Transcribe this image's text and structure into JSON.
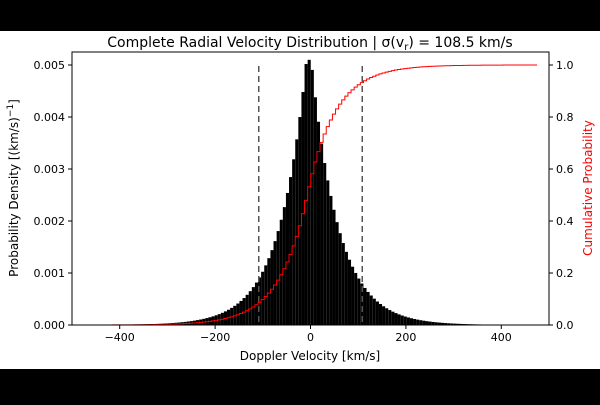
{
  "chart_data": {
    "type": "bar",
    "title": "Complete Radial Velocity Distribution | σ(v",
    "title_sub": "r",
    "title_tail": ") = 108.5 km/s",
    "xlabel": "Doppler Velocity [km/s]",
    "ylabel": "Probability Density [(km/s)",
    "ylabel_sup": "−1",
    "ylabel_tail": "]",
    "y2label": "Cumulative Probability",
    "xlim": [
      -500,
      500
    ],
    "ylim": [
      0,
      0.00525
    ],
    "y2lim": [
      0,
      1.05
    ],
    "x_ticks": [
      -400,
      -200,
      0,
      200,
      400
    ],
    "x_tick_labels": [
      "−400",
      "−200",
      "0",
      "200",
      "400"
    ],
    "y_ticks": [
      0,
      0.001,
      0.002,
      0.003,
      0.004,
      0.005
    ],
    "y_tick_labels": [
      "0.000",
      "0.001",
      "0.002",
      "0.003",
      "0.004",
      "0.005"
    ],
    "y2_ticks": [
      0,
      0.2,
      0.4,
      0.6,
      0.8,
      1.0
    ],
    "y2_tick_labels": [
      "0.0",
      "0.2",
      "0.4",
      "0.6",
      "0.8",
      "1.0"
    ],
    "bin_width": 6.5,
    "sigma": 108.5,
    "reference_lines": [
      -108.5,
      108.5
    ],
    "histogram": {
      "x": [
        -477.25,
        -470.75,
        -464.25,
        -457.75,
        -451.25,
        -444.75,
        -438.25,
        -431.75,
        -425.25,
        -418.75,
        -412.25,
        -405.75,
        -399.25,
        -392.75,
        -386.25,
        -379.75,
        -373.25,
        -366.75,
        -360.25,
        -353.75,
        -347.25,
        -340.75,
        -334.25,
        -327.75,
        -321.25,
        -314.75,
        -308.25,
        -301.75,
        -295.25,
        -288.75,
        -282.25,
        -275.75,
        -269.25,
        -262.75,
        -256.25,
        -249.75,
        -243.25,
        -236.75,
        -230.25,
        -223.75,
        -217.25,
        -210.75,
        -204.25,
        -197.75,
        -191.25,
        -184.75,
        -178.25,
        -171.75,
        -165.25,
        -158.75,
        -152.25,
        -145.75,
        -139.25,
        -132.75,
        -126.25,
        -119.75,
        -113.25,
        -106.75,
        -100.25,
        -93.75,
        -87.25,
        -80.75,
        -74.25,
        -67.75,
        -61.25,
        -54.75,
        -48.25,
        -41.75,
        -35.25,
        -28.75,
        -22.25,
        -15.75,
        -9.25,
        -2.75,
        3.75,
        10.25,
        16.75,
        23.25,
        29.75,
        36.25,
        42.75,
        49.25,
        55.75,
        62.25,
        68.75,
        75.25,
        81.75,
        88.25,
        94.75,
        101.25,
        107.75,
        114.25,
        120.75,
        127.25,
        133.75,
        140.25,
        146.75,
        153.25,
        159.75,
        166.25,
        172.75,
        179.25,
        185.75,
        192.25,
        198.75,
        205.25,
        211.75,
        218.25,
        224.75,
        231.25,
        237.75,
        244.25,
        250.75,
        257.25,
        263.75,
        270.25,
        276.75,
        283.25,
        289.75,
        296.25,
        302.75,
        309.25,
        315.75,
        322.25,
        328.75,
        335.25,
        341.75,
        348.25,
        354.75,
        361.25,
        367.75,
        374.25,
        380.75,
        387.25,
        393.75,
        400.25,
        406.75,
        413.25,
        419.75,
        426.25,
        432.75,
        439.25,
        445.75,
        452.25,
        458.75,
        465.25,
        471.75,
        478.25
      ],
      "density": [
        1.4e-06,
        1.5e-06,
        1.7e-06,
        1.9e-06,
        2.2e-06,
        2.4e-06,
        2.7e-06,
        3.1e-06,
        3.4e-06,
        3.9e-06,
        4.3e-06,
        4.8e-06,
        5.4e-06,
        6.1e-06,
        6.8e-06,
        7.7e-06,
        8.6e-06,
        9.7e-06,
        1.08e-05,
        1.22e-05,
        1.36e-05,
        1.53e-05,
        1.71e-05,
        1.92e-05,
        2.15e-05,
        2.41e-05,
        2.7e-05,
        3.02e-05,
        3.39e-05,
        3.8e-05,
        4.26e-05,
        4.77e-05,
        5.35e-05,
        5.99e-05,
        6.71e-05,
        7.52e-05,
        8.42e-05,
        9.43e-05,
        0.0001057,
        0.0001184,
        0.0001326,
        0.0001486,
        0.0001664,
        0.0001865,
        0.0002089,
        0.000234,
        0.0002622,
        0.0002937,
        0.000329,
        0.0003686,
        0.0004129,
        0.0004625,
        0.0005181,
        0.0005804,
        0.0006502,
        0.0007284,
        0.000816,
        0.0009141,
        0.001024,
        0.0011471,
        0.001285,
        0.0014395,
        0.0016126,
        0.0018064,
        0.0020236,
        0.0022669,
        0.0025395,
        0.0028448,
        0.0031869,
        0.0035701,
        0.0039993,
        0.0044801,
        0.0050188,
        0.0051,
        0.0049054,
        0.0043789,
        0.0039089,
        0.0034894,
        0.0031148,
        0.0027805,
        0.0024821,
        0.0022157,
        0.0019779,
        0.0017656,
        0.0015761,
        0.0014069,
        0.0012559,
        0.0011211,
        0.0010008,
        0.0008934,
        0.0007975,
        0.0007119,
        0.0006355,
        0.0005673,
        0.0005064,
        0.000452,
        0.0004035,
        0.0003602,
        0.0003215,
        0.000287,
        0.0002562,
        0.0002287,
        0.0002042,
        0.0001822,
        0.0001627,
        0.0001452,
        0.0001296,
        0.0001157,
        0.0001033,
        9.22e-05,
        8.23e-05,
        7.35e-05,
        6.56e-05,
        5.86e-05,
        5.23e-05,
        4.67e-05,
        4.17e-05,
        3.72e-05,
        3.32e-05,
        2.96e-05,
        2.65e-05,
        2.36e-05,
        2.11e-05,
        1.88e-05,
        1.68e-05,
        1.5e-05,
        1.34e-05,
        1.19e-05,
        1.07e-05,
        9.5e-06,
        8.5e-06,
        7.6e-06,
        6.8e-06,
        6.1e-06,
        5.4e-06,
        4.8e-06,
        4.3e-06,
        3.8e-06,
        3.4e-06,
        3.1e-06,
        2.7e-06,
        2.4e-06,
        2.2e-06,
        1.9e-06,
        1.7e-06,
        1.5e-06,
        1.4e-06
      ]
    },
    "series": [
      {
        "name": "",
        "type": "bar",
        "color": "#000000"
      },
      {
        "name": "",
        "type": "step",
        "color": "#ff0000",
        "axis": "right"
      }
    ],
    "grid": false,
    "legend": "none"
  }
}
